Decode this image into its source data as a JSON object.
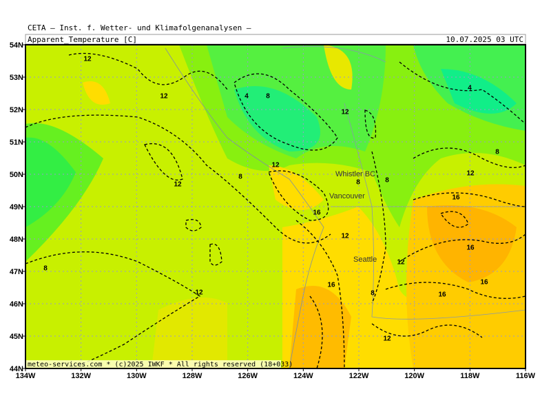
{
  "header": {
    "title": "CETA — Inst. f. Wetter- und Klimafolgenanalysen —",
    "parameter": "Apparent_Temperature [C]",
    "valid_time": "10.07.2025 03 UTC"
  },
  "map": {
    "lat_labels": [
      "54N",
      "53N",
      "52N",
      "51N",
      "50N",
      "49N",
      "48N",
      "47N",
      "46N",
      "45N",
      "44N"
    ],
    "lon_labels": [
      "134W",
      "132W",
      "130W",
      "128W",
      "126W",
      "124W",
      "122W",
      "120W",
      "118W",
      "116W"
    ],
    "places": [
      "Whistler BC",
      "Vancouver",
      "Seattle"
    ],
    "contour_labels": [
      12,
      12,
      4,
      8,
      12,
      12,
      8,
      12,
      8,
      8,
      12,
      8,
      4,
      16,
      16,
      12,
      16,
      8,
      12,
      16,
      16,
      8,
      12,
      16,
      12
    ],
    "footer": "meteo-services.com * (c)2025 IWKF * All rights reserved (18+033)"
  }
}
